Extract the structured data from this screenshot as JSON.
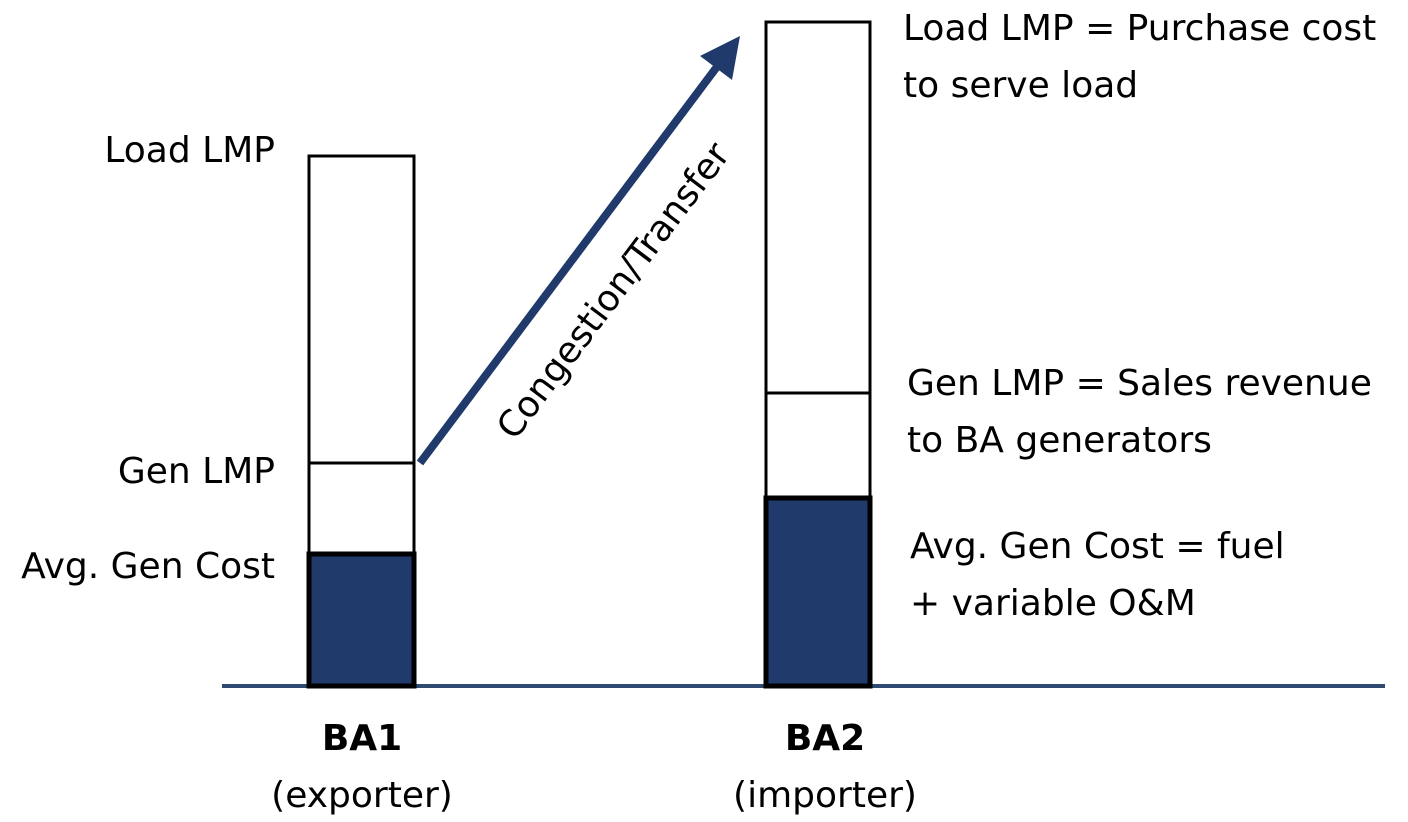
{
  "columns": [
    {
      "name": "BA1",
      "role": "(exporter)",
      "labels": {
        "load": "Load LMP",
        "gen": "Gen LMP",
        "cost": "Avg. Gen Cost"
      }
    },
    {
      "name": "BA2",
      "role": "(importer)",
      "labels": {
        "load": [
          "Load LMP = Purchase cost",
          "to serve load"
        ],
        "gen": [
          "Gen LMP = Sales revenue",
          "to BA generators"
        ],
        "cost": [
          "Avg. Gen Cost = fuel",
          "+ variable O&M"
        ]
      }
    }
  ],
  "arrow": {
    "label": "Congestion/Transfer"
  }
}
